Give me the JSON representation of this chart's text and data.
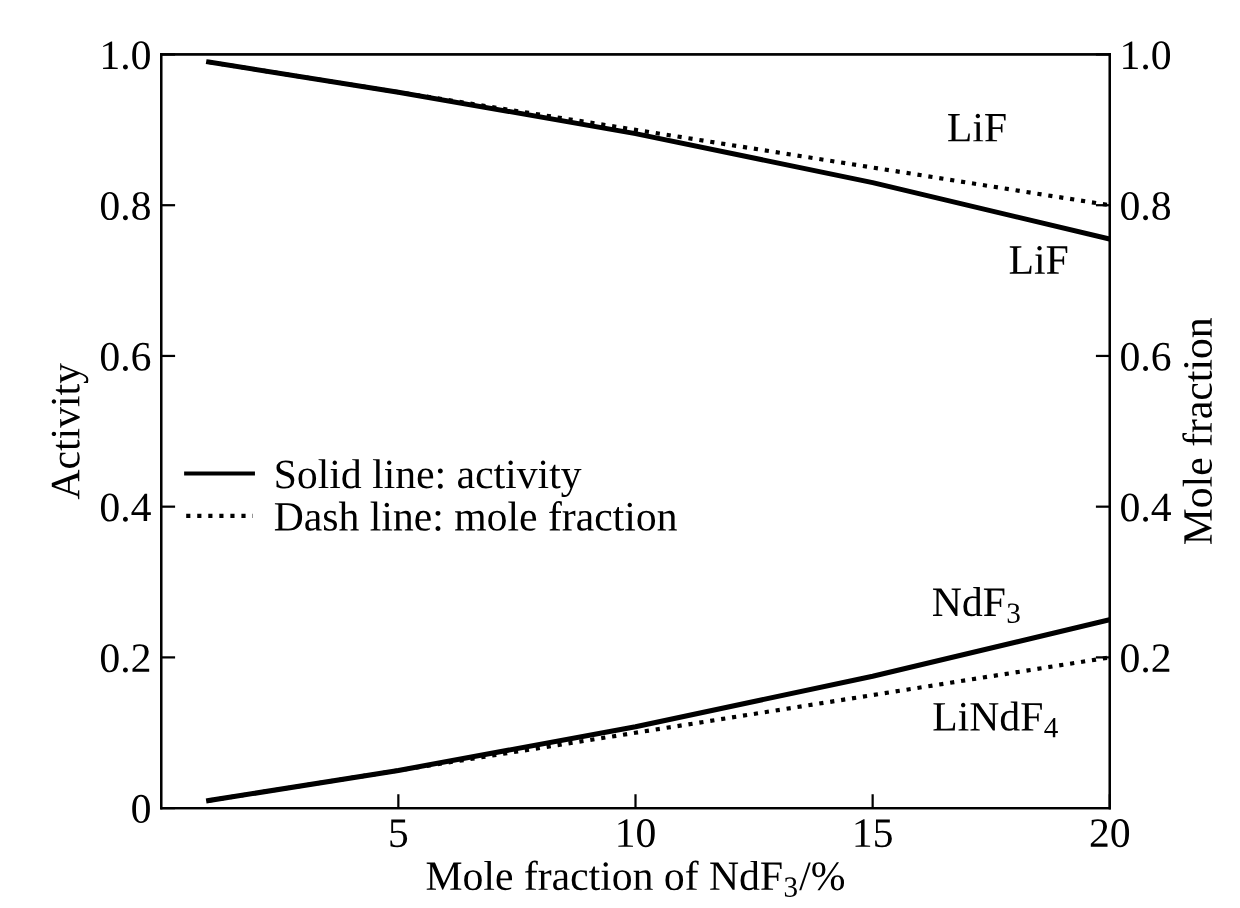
{
  "chart_data": {
    "type": "line",
    "xlabel": "Mole fraction of NdF$_{3}$/%",
    "ylabel": "Activity",
    "y2label": "Mole fraction",
    "xlim": [
      0,
      20
    ],
    "xticks": [
      5,
      10,
      15,
      20
    ],
    "ylim": [
      0,
      1
    ],
    "yticks": [
      0,
      {
        "value": 0.2,
        "label": "0.2"
      },
      {
        "value": 0.4,
        "label": "0.4"
      },
      {
        "value": 0.6,
        "label": "0.6"
      },
      {
        "value": 0.8,
        "label": "0.8"
      },
      {
        "value": 1,
        "label": "1.0"
      }
    ],
    "y2lim": [
      0,
      1
    ],
    "y2ticks": [
      {
        "value": 0.2,
        "label": "0.2"
      },
      {
        "value": 0.4,
        "label": "0.4"
      },
      {
        "value": 0.6,
        "label": "0.6"
      },
      {
        "value": 0.8,
        "label": "0.8"
      },
      {
        "value": 1,
        "label": "1.0"
      }
    ],
    "grid": false,
    "marker": "none",
    "series": [
      {
        "name": "LiF",
        "color": "#000000",
        "line_style": "solid",
        "x": [
          1,
          5,
          10,
          15,
          20
        ],
        "values": [
          0.99,
          0.95,
          0.895,
          0.83,
          0.755
        ]
      },
      {
        "name": "LiF",
        "color": "#000000",
        "line_style": "dotted",
        "x": [
          1,
          5,
          10,
          15,
          20
        ],
        "values": [
          0.99,
          0.95,
          0.9,
          0.85,
          0.8
        ]
      },
      {
        "name": "NdF$_{3}$",
        "color": "#000000",
        "line_style": "solid",
        "x": [
          1,
          5,
          10,
          15,
          20
        ],
        "values": [
          0.01,
          0.05,
          0.108,
          0.175,
          0.25
        ]
      },
      {
        "name": "LiNdF$_{4}$",
        "color": "#000000",
        "line_style": "dotted",
        "x": [
          1,
          5,
          10,
          15,
          20
        ],
        "values": [
          0.01,
          0.05,
          0.1,
          0.15,
          0.2
        ]
      }
    ],
    "annotations": [
      "Solid line: activity",
      "Dash line: mole fraction"
    ]
  }
}
